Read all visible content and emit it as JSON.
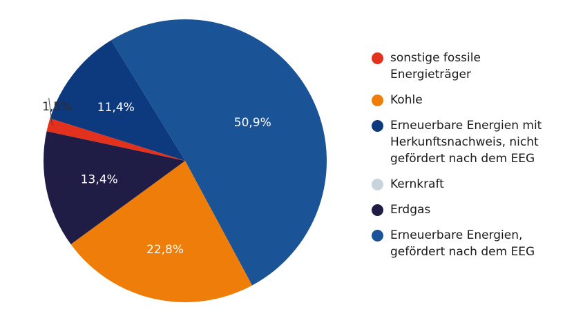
{
  "chart_data": {
    "type": "pie",
    "title": "",
    "slices": [
      {
        "name": "Erneuerbare Energien, gefördert nach dem EEG",
        "value": 50.9,
        "label": "50,9%",
        "color": "#1a5496",
        "label_color": "#ffffff"
      },
      {
        "name": "Kohle",
        "value": 22.8,
        "label": "22,8%",
        "color": "#ef7d0a",
        "label_color": "#ffffff"
      },
      {
        "name": "Erdgas",
        "value": 13.4,
        "label": "13,4%",
        "color": "#1f1d45",
        "label_color": "#ffffff"
      },
      {
        "name": "sonstige fossile Energieträger",
        "value": 1.5,
        "label": "1,5%",
        "color": "#e2311d",
        "label_color": "#2b2b2b"
      },
      {
        "name": "Erneuerbare Energien mit Herkunftsnachweis, nicht gefördert nach dem EEG",
        "value": 11.4,
        "label": "11,4%",
        "color": "#0d3a7f",
        "label_color": "#ffffff"
      },
      {
        "name": "Kernkraft",
        "value": 0.0,
        "label": "",
        "color": "#c9d3dc",
        "label_color": "#2b2b2b"
      }
    ]
  },
  "legend": {
    "items": [
      {
        "label": "sonstige fossile Energieträger",
        "color": "#e2311d"
      },
      {
        "label": "Kohle",
        "color": "#ef7d0a"
      },
      {
        "label": "Erneuerbare Energien mit Herkunftsnachweis, nicht gefördert nach dem EEG",
        "color": "#0d3a7f"
      },
      {
        "label": "Kernkraft",
        "color": "#c9d3dc"
      },
      {
        "label": "Erdgas",
        "color": "#1f1d45"
      },
      {
        "label": "Erneuerbare Energien, gefördert nach dem EEG",
        "color": "#1a5496"
      }
    ]
  }
}
